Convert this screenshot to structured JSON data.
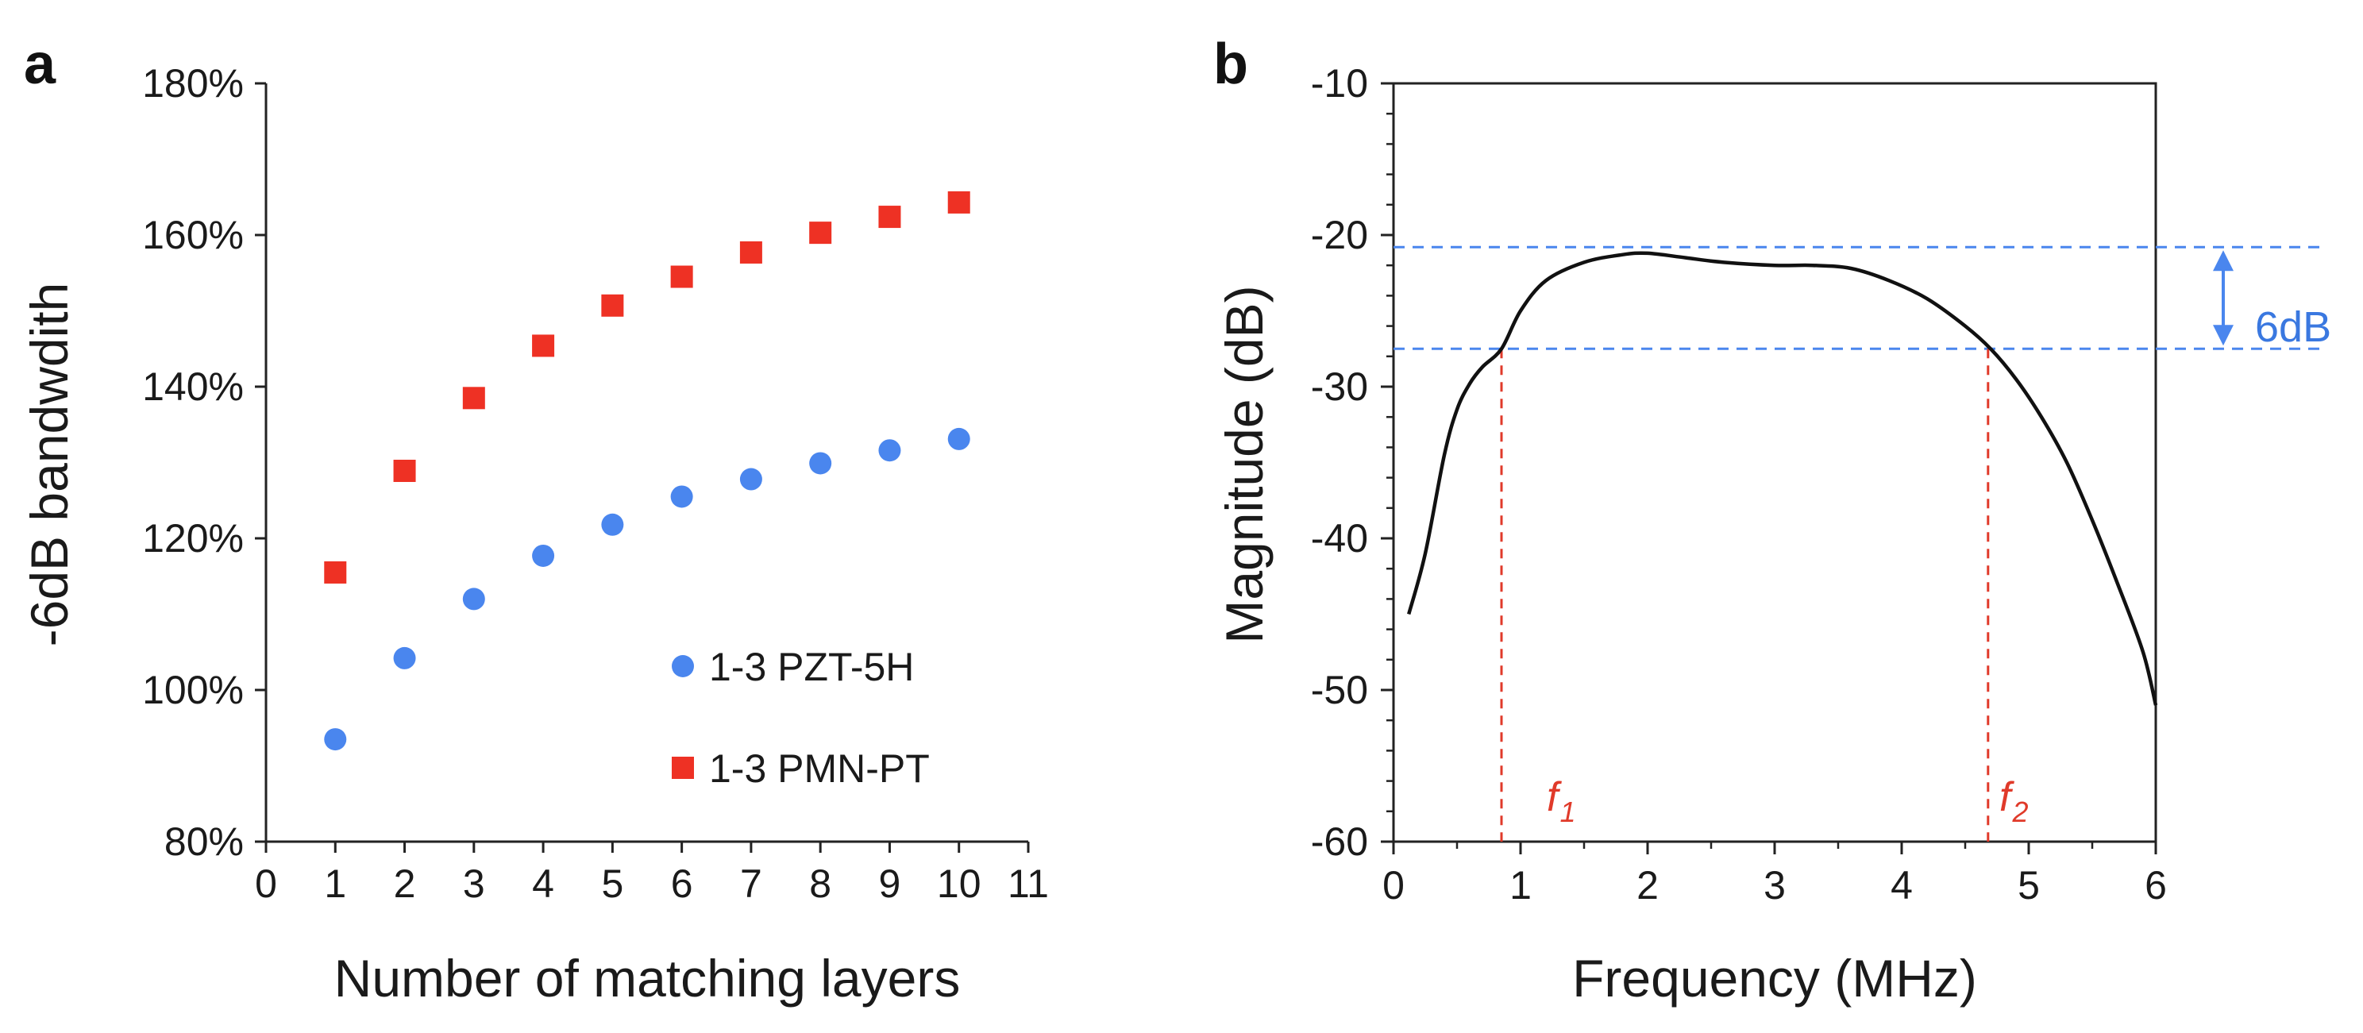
{
  "chart_data": [
    {
      "panel_label": "a",
      "type": "scatter",
      "xlabel": "Number of matching layers",
      "ylabel": "-6dB bandwdith",
      "xlim": [
        0,
        11
      ],
      "ylim": [
        80,
        180
      ],
      "xticks": [
        "0",
        "1",
        "2",
        "3",
        "4",
        "5",
        "6",
        "7",
        "8",
        "9",
        "10",
        "11"
      ],
      "yticks": [
        "80%",
        "100%",
        "120%",
        "140%",
        "160%",
        "180%"
      ],
      "series": [
        {
          "name": "1-3 PZT-5H",
          "marker": "circle",
          "color": "#4a86ee",
          "x": [
            1,
            2,
            3,
            4,
            5,
            6,
            7,
            8,
            9,
            10
          ],
          "values": [
            93.5,
            104.2,
            112.0,
            117.7,
            121.8,
            125.5,
            127.8,
            129.9,
            131.6,
            133.1
          ]
        },
        {
          "name": "1-3 PMN-PT",
          "marker": "square",
          "color": "#ee3124",
          "x": [
            1,
            2,
            3,
            4,
            5,
            6,
            7,
            8,
            9,
            10
          ],
          "values": [
            115.5,
            128.9,
            138.5,
            145.4,
            150.7,
            154.5,
            157.7,
            160.3,
            162.4,
            164.3
          ]
        }
      ],
      "legend_position": "bottom-right"
    },
    {
      "panel_label": "b",
      "type": "line",
      "xlabel": "Frequency (MHz)",
      "ylabel": "Magnitude (dB)",
      "xlim": [
        0,
        6
      ],
      "ylim": [
        -60,
        -10
      ],
      "xticks": [
        "0",
        "1",
        "2",
        "3",
        "4",
        "5",
        "6"
      ],
      "yticks": [
        "-60",
        "-50",
        "-40",
        "-30",
        "-20",
        "-10"
      ],
      "series": [
        {
          "name": "Magnitude",
          "color": "#111111",
          "x": [
            0.12,
            0.25,
            0.4,
            0.5,
            0.6,
            0.7,
            0.85,
            1.0,
            1.2,
            1.5,
            1.8,
            2.0,
            2.3,
            2.6,
            3.0,
            3.3,
            3.6,
            3.9,
            4.2,
            4.5,
            4.7,
            4.9,
            5.1,
            5.3,
            5.5,
            5.7,
            5.9,
            6.0
          ],
          "values": [
            -45.0,
            -41.0,
            -34.5,
            -31.5,
            -29.8,
            -28.7,
            -27.5,
            -25.0,
            -23.0,
            -21.8,
            -21.3,
            -21.2,
            -21.5,
            -21.8,
            -22.0,
            -22.0,
            -22.2,
            -23.0,
            -24.2,
            -26.0,
            -27.5,
            -29.5,
            -32.0,
            -35.0,
            -38.8,
            -43.0,
            -47.5,
            -51.0
          ]
        }
      ],
      "reference_lines": {
        "upper_dB": -20.8,
        "lower_dB": -27.5,
        "f1_MHz": 0.85,
        "f2_MHz": 4.68
      },
      "annotations": {
        "span_label": "6dB",
        "f1_symbol": "f",
        "f1_sub": "1",
        "f2_symbol": "f",
        "f2_sub": "2"
      },
      "colors": {
        "dashed_blue": "#4a86ee",
        "dashed_red": "#e03a2a",
        "curve": "#111111"
      }
    }
  ]
}
